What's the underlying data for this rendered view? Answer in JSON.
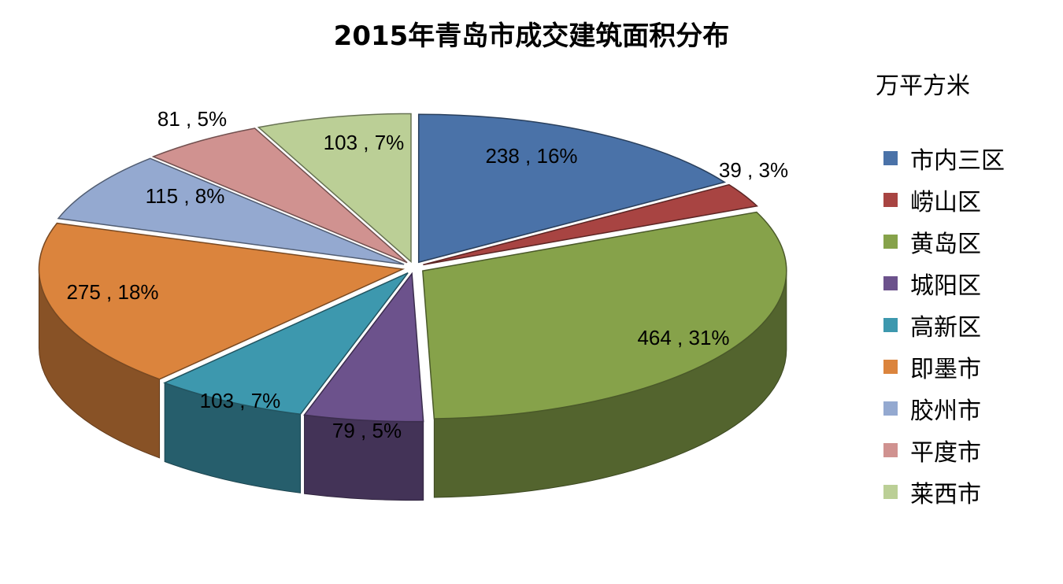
{
  "chart_data": {
    "type": "pie",
    "title": "2015年青岛市成交建筑面积分布",
    "unit": "万平方米",
    "legend_position": "right",
    "slices": [
      {
        "name": "市内三区",
        "value": 238,
        "percent": "16%",
        "color": "#4A72A8"
      },
      {
        "name": "崂山区",
        "value": 39,
        "percent": "3%",
        "color": "#A84442"
      },
      {
        "name": "黄岛区",
        "value": 464,
        "percent": "31%",
        "color": "#86A24A"
      },
      {
        "name": "城阳区",
        "value": 79,
        "percent": "5%",
        "color": "#6C528C"
      },
      {
        "name": "高新区",
        "value": 103,
        "percent": "7%",
        "color": "#3D98AE"
      },
      {
        "name": "即墨市",
        "value": 275,
        "percent": "18%",
        "color": "#DB843D"
      },
      {
        "name": "胶州市",
        "value": 115,
        "percent": "8%",
        "color": "#94A9D0"
      },
      {
        "name": "平度市",
        "value": 81,
        "percent": "5%",
        "color": "#D09290"
      },
      {
        "name": "莱西市",
        "value": 103,
        "percent": "7%",
        "color": "#BBCF96"
      }
    ],
    "data_labels": [
      "238 , 16%",
      "39 , 3%",
      "464 , 31%",
      "79 , 5%",
      "103 , 7%",
      "275 , 18%",
      "115 , 8%",
      "81 , 5%",
      "103 , 7%"
    ]
  }
}
